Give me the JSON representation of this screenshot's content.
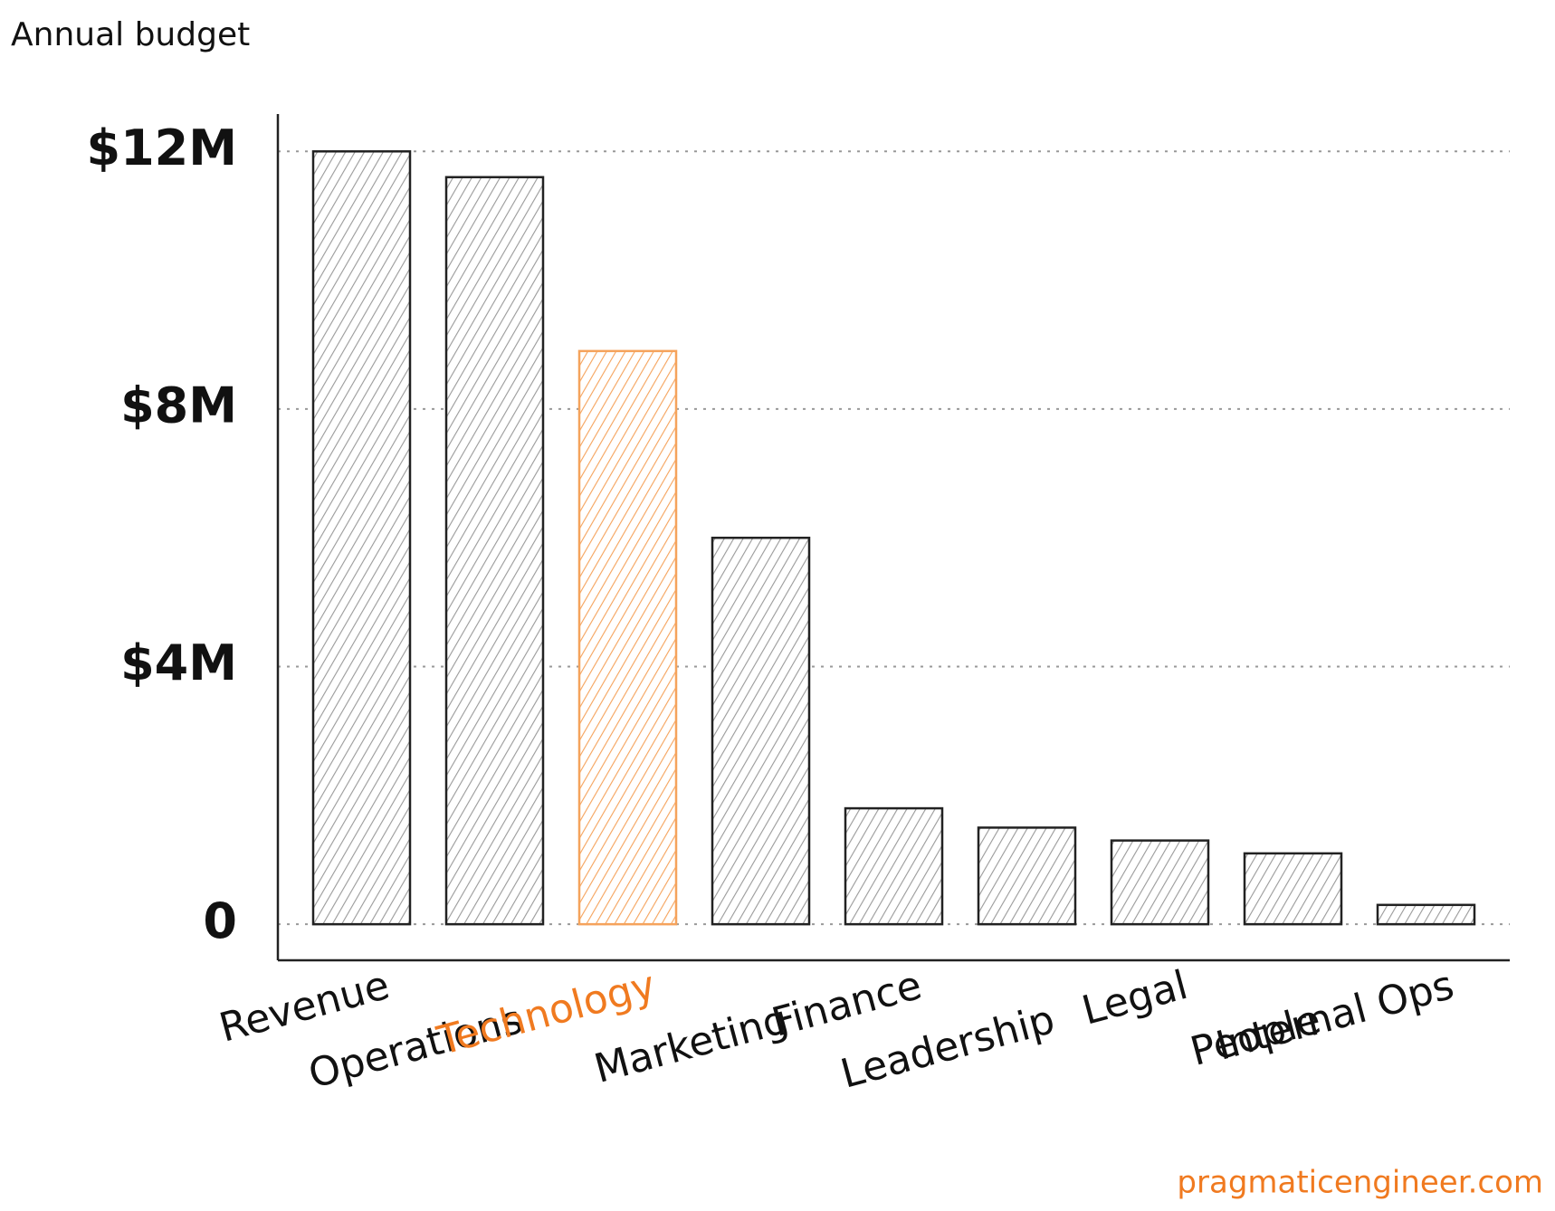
{
  "chart_data": {
    "type": "bar",
    "title": "Annual budget",
    "categories": [
      "Revenue",
      "Operations",
      "Technology",
      "Marketing",
      "Finance",
      "Leadership",
      "Legal",
      "People",
      "Internal Ops"
    ],
    "values": [
      12,
      11.6,
      8.9,
      6.0,
      1.8,
      1.5,
      1.3,
      1.1,
      0.3
    ],
    "colors": [
      "#9a9a9a",
      "#9a9a9a",
      "#f5a35c",
      "#9a9a9a",
      "#9a9a9a",
      "#9a9a9a",
      "#9a9a9a",
      "#9a9a9a",
      "#9a9a9a"
    ],
    "label_colors": [
      "#111111",
      "#111111",
      "#f07a20",
      "#111111",
      "#111111",
      "#111111",
      "#111111",
      "#111111",
      "#111111"
    ],
    "ylim": [
      -0.56,
      12.58
    ],
    "yticks": [
      0,
      {
        "value": 4,
        "label": "$4M"
      },
      {
        "value": 8,
        "label": "$8M"
      },
      {
        "value": 12,
        "label": "$12M"
      }
    ],
    "grid": true,
    "footer": "pragmaticengineer.com"
  }
}
